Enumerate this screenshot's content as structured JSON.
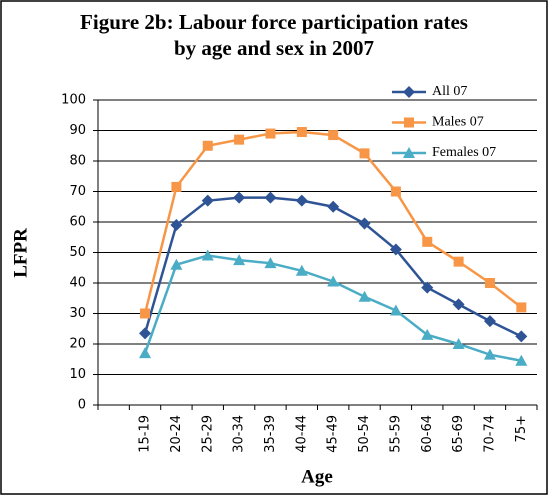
{
  "chart_data": {
    "type": "line",
    "title": "Figure 2b: Labour force participation rates by age and sex in 2007",
    "y_label": "LFPR",
    "x_label": "Age",
    "categories": [
      null,
      "15-19",
      "20-24",
      "25-29",
      "30-34",
      "35-39",
      "40-44",
      "45-49",
      "50-54",
      "55-59",
      "60-64",
      "65-69",
      "70-74",
      "75+"
    ],
    "series": [
      {
        "name": "All 07",
        "color": "#2e5496",
        "marker": "diamond",
        "values": [
          null,
          23.5,
          59,
          67,
          68,
          68,
          67,
          65,
          59.5,
          51,
          38.5,
          33,
          27.5,
          22.5
        ]
      },
      {
        "name": "Males 07",
        "color": "#f79646",
        "marker": "square",
        "values": [
          null,
          30,
          71.5,
          85,
          87,
          89,
          89.5,
          88.5,
          82.5,
          70,
          53.5,
          47,
          40,
          32
        ]
      },
      {
        "name": "Females 07",
        "color": "#4bacc6",
        "marker": "triangle",
        "values": [
          null,
          17,
          46,
          49,
          47.5,
          46.5,
          44,
          40.5,
          35.5,
          31,
          23,
          20,
          16.5,
          14.5
        ]
      }
    ],
    "ylim": [
      0,
      100
    ],
    "yticks": [
      0,
      10,
      20,
      30,
      40,
      50,
      60,
      70,
      80,
      90,
      100
    ],
    "grid": true,
    "legend": "upper right"
  }
}
